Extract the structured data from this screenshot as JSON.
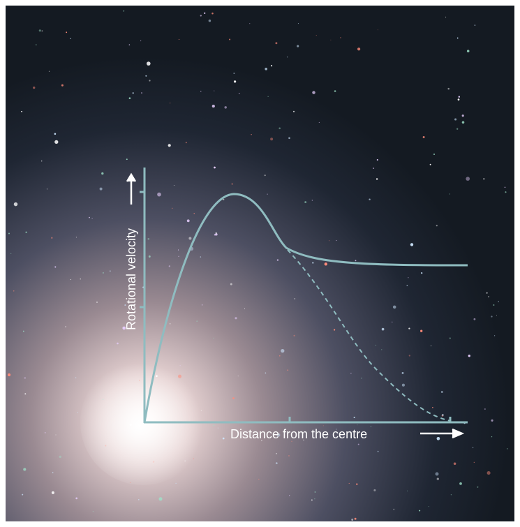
{
  "axes": {
    "y_label": "Rotational velocity",
    "x_label": "Distance from the centre"
  }
}
